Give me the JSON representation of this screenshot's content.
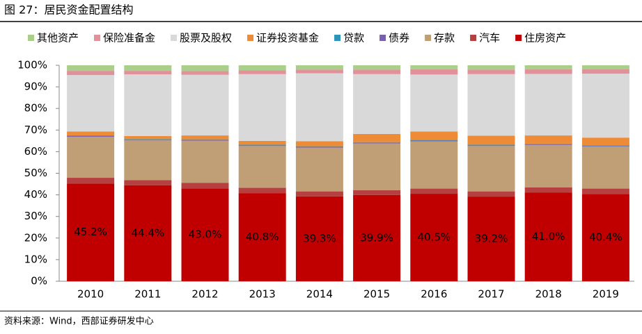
{
  "chart_data": {
    "type": "stacked_bar",
    "title": "图 27：居民资金配置结构",
    "source": "资料来源：Wind，西部证券研发中心",
    "categories": [
      "2010",
      "2011",
      "2012",
      "2013",
      "2014",
      "2015",
      "2016",
      "2017",
      "2018",
      "2019"
    ],
    "series": [
      {
        "name": "住房资产",
        "color": "#c00000",
        "values": [
          45.2,
          44.4,
          43.0,
          40.8,
          39.3,
          39.9,
          40.5,
          39.2,
          41.0,
          40.4
        ],
        "value_labels": [
          "45.2%",
          "44.4%",
          "43.0%",
          "40.8%",
          "39.3%",
          "39.9%",
          "40.5%",
          "39.2%",
          "41.0%",
          "40.4%"
        ]
      },
      {
        "name": "汽车",
        "color": "#b6403f",
        "values": [
          2.7,
          2.4,
          2.6,
          2.5,
          2.3,
          2.3,
          2.4,
          2.4,
          2.5,
          2.5
        ]
      },
      {
        "name": "存款",
        "color": "#c09f77",
        "values": [
          19.0,
          18.4,
          19.5,
          19.3,
          20.3,
          21.6,
          21.9,
          21.0,
          19.6,
          19.4
        ]
      },
      {
        "name": "债券",
        "color": "#7a5fae",
        "values": [
          0.3,
          0.3,
          0.3,
          0.3,
          0.3,
          0.3,
          0.3,
          0.3,
          0.3,
          0.3
        ]
      },
      {
        "name": "贷款",
        "color": "#2e95b8",
        "values": [
          0.3,
          0.3,
          0.3,
          0.3,
          0.3,
          0.3,
          0.3,
          0.3,
          0.3,
          0.3
        ]
      },
      {
        "name": "证券投资基金",
        "color": "#ed8b36",
        "values": [
          1.8,
          1.4,
          1.8,
          1.8,
          2.3,
          3.8,
          3.9,
          4.2,
          3.8,
          3.6
        ]
      },
      {
        "name": "股票及股权",
        "color": "#d9d9d9",
        "values": [
          26.2,
          28.6,
          28.1,
          30.9,
          31.5,
          27.7,
          26.4,
          28.5,
          28.5,
          29.6
        ]
      },
      {
        "name": "保险准备金",
        "color": "#e0919a",
        "values": [
          1.9,
          1.6,
          1.7,
          1.7,
          1.7,
          2.1,
          2.4,
          2.1,
          2.1,
          2.1
        ]
      },
      {
        "name": "其他资产",
        "color": "#a9cf8a",
        "values": [
          2.6,
          2.6,
          2.7,
          2.4,
          2.0,
          2.0,
          1.9,
          2.0,
          1.9,
          1.8
        ]
      }
    ],
    "legend_order": [
      8,
      7,
      6,
      5,
      4,
      3,
      2,
      1,
      0
    ],
    "ylim": [
      0,
      100
    ],
    "yticks": [
      {
        "value": 0,
        "label": "0%"
      },
      {
        "value": 10,
        "label": "10%"
      },
      {
        "value": 20,
        "label": "20%"
      },
      {
        "value": 30,
        "label": "30%"
      },
      {
        "value": 40,
        "label": "40%"
      },
      {
        "value": 50,
        "label": "50%"
      },
      {
        "value": 60,
        "label": "60%"
      },
      {
        "value": 70,
        "label": "70%"
      },
      {
        "value": 80,
        "label": "80%"
      },
      {
        "value": 90,
        "label": "90%"
      },
      {
        "value": 100,
        "label": "100%"
      }
    ]
  }
}
